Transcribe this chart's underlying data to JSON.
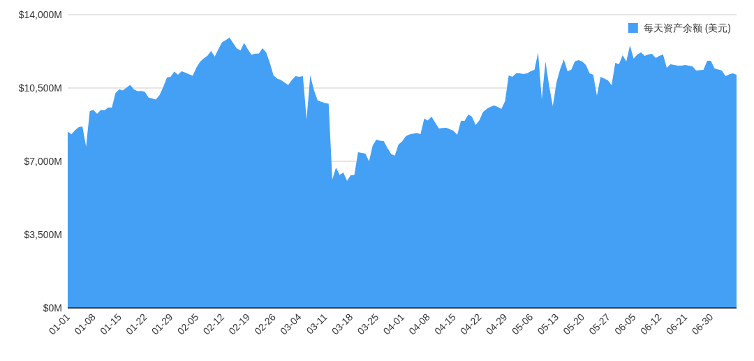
{
  "chart_data": {
    "type": "area",
    "categories": [
      "01-01",
      null,
      null,
      null,
      null,
      null,
      null,
      "01-08",
      null,
      null,
      null,
      null,
      null,
      null,
      "01-15",
      null,
      null,
      null,
      null,
      null,
      null,
      "01-22",
      null,
      null,
      null,
      null,
      null,
      null,
      "01-29",
      null,
      null,
      null,
      null,
      null,
      null,
      "02-05",
      null,
      null,
      null,
      null,
      null,
      null,
      "02-12",
      null,
      null,
      null,
      null,
      null,
      null,
      "02-19",
      null,
      null,
      null,
      null,
      null,
      null,
      "02-26",
      null,
      null,
      null,
      null,
      null,
      null,
      "03-04",
      null,
      null,
      null,
      null,
      null,
      null,
      "03-11",
      null,
      null,
      null,
      null,
      null,
      null,
      "03-18",
      null,
      null,
      null,
      null,
      null,
      null,
      "03-25",
      null,
      null,
      null,
      null,
      null,
      null,
      "04-01",
      null,
      null,
      null,
      null,
      null,
      null,
      "04-08",
      null,
      null,
      null,
      null,
      null,
      null,
      "04-15",
      null,
      null,
      null,
      null,
      null,
      null,
      "04-22",
      null,
      null,
      null,
      null,
      null,
      null,
      "04-29",
      null,
      null,
      null,
      null,
      null,
      null,
      "05-06",
      null,
      null,
      null,
      null,
      null,
      null,
      "05-13",
      null,
      null,
      null,
      null,
      null,
      null,
      "05-20",
      null,
      null,
      null,
      null,
      null,
      null,
      "05-27",
      null,
      null,
      null,
      null,
      null,
      null,
      "06-05",
      null,
      null,
      null,
      null,
      null,
      null,
      "06-12",
      null,
      null,
      null,
      null,
      null,
      null,
      "06-21",
      null,
      null,
      null,
      null,
      null,
      null,
      "06-30",
      null,
      null,
      null,
      null,
      null,
      null,
      null
    ],
    "series": [
      {
        "name": "每天资产余额 (美元)",
        "color": "#44a0f5",
        "values": [
          8420,
          8290,
          8480,
          8630,
          8660,
          7700,
          9400,
          9450,
          9270,
          9450,
          9430,
          9570,
          9560,
          10260,
          10430,
          10380,
          10520,
          10650,
          10430,
          10350,
          10360,
          10320,
          10040,
          10000,
          9950,
          10170,
          10550,
          11000,
          11030,
          11280,
          11130,
          11300,
          11230,
          11160,
          11080,
          11470,
          11750,
          11910,
          12030,
          12270,
          12000,
          12350,
          12680,
          12780,
          12910,
          12650,
          12390,
          12290,
          12650,
          12350,
          12080,
          12140,
          12140,
          12400,
          12200,
          11700,
          11100,
          10950,
          10880,
          10760,
          10640,
          10880,
          11070,
          11030,
          11070,
          9000,
          11100,
          10400,
          9910,
          9840,
          9780,
          9750,
          6130,
          6700,
          6350,
          6470,
          6070,
          6330,
          6350,
          7430,
          7400,
          7370,
          7000,
          7770,
          8030,
          7980,
          7970,
          7630,
          7350,
          7270,
          7800,
          7950,
          8200,
          8280,
          8320,
          8350,
          8300,
          9030,
          8950,
          9130,
          8850,
          8570,
          8590,
          8600,
          8530,
          8450,
          8270,
          8930,
          8930,
          9230,
          9130,
          8730,
          8950,
          9350,
          9500,
          9600,
          9670,
          9600,
          9500,
          9870,
          11100,
          11030,
          11200,
          11200,
          11170,
          11200,
          11300,
          11370,
          12200,
          9970,
          11770,
          10600,
          9630,
          10770,
          11400,
          11870,
          11300,
          11370,
          11770,
          11830,
          11770,
          11600,
          11200,
          11130,
          10130,
          11030,
          10950,
          10870,
          10630,
          11700,
          11630,
          12070,
          11770,
          12530,
          11900,
          12100,
          12200,
          12030,
          12100,
          12130,
          11930,
          12030,
          12100,
          11470,
          11630,
          11600,
          11570,
          11570,
          11600,
          11570,
          11530,
          11330,
          11350,
          11370,
          11800,
          11800,
          11430,
          11380,
          11330,
          11070,
          11150,
          11200,
          11130
        ]
      }
    ],
    "ylim": [
      0,
      14000
    ],
    "yticks": [
      {
        "value": 0,
        "label": "$0M"
      },
      {
        "value": 3500,
        "label": "$3,500M"
      },
      {
        "value": 7000,
        "label": "$7,000M"
      },
      {
        "value": 10500,
        "label": "$10,500M"
      },
      {
        "value": 14000,
        "label": "$14,000M"
      }
    ],
    "grid": "y",
    "legend": "top right"
  }
}
